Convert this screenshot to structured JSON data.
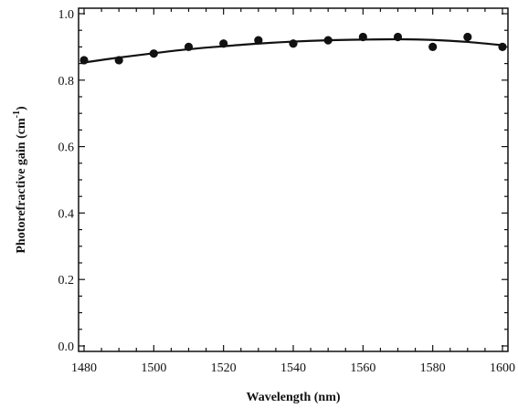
{
  "chart_data": {
    "type": "scatter",
    "title": "",
    "xlabel": "Wavelength (nm)",
    "ylabel_main": "Photorefractive  gain (cm",
    "ylabel_sup": "-1",
    "ylabel_tail": ")",
    "xlim": [
      1480,
      1600
    ],
    "ylim": [
      0.0,
      1.0
    ],
    "x_ticks": [
      1480,
      1500,
      1520,
      1540,
      1560,
      1580,
      1600
    ],
    "x_tick_labels": [
      "1480",
      "1500",
      "1520",
      "1540",
      "1560",
      "1580",
      "1600"
    ],
    "y_ticks": [
      0.0,
      0.2,
      0.4,
      0.6,
      0.8,
      1.0
    ],
    "y_tick_labels": [
      "0.0",
      "0.2",
      "0.4",
      "0.6",
      "0.8",
      "1.0"
    ],
    "grid": false,
    "legend": "none",
    "series": [
      {
        "kind": "points",
        "x": [
          1480,
          1490,
          1500,
          1510,
          1520,
          1530,
          1540,
          1550,
          1560,
          1570,
          1580,
          1590,
          1600
        ],
        "y": [
          0.86,
          0.86,
          0.88,
          0.9,
          0.91,
          0.92,
          0.91,
          0.92,
          0.93,
          0.93,
          0.9,
          0.93,
          0.9
        ]
      },
      {
        "kind": "fit-line",
        "x": [
          1480,
          1490,
          1500,
          1510,
          1520,
          1530,
          1540,
          1550,
          1560,
          1570,
          1580,
          1590,
          1600
        ],
        "y": [
          0.853,
          0.868,
          0.881,
          0.893,
          0.902,
          0.91,
          0.916,
          0.92,
          0.922,
          0.923,
          0.921,
          0.915,
          0.905
        ]
      }
    ],
    "colors": {
      "ink": "#111111",
      "background": "#ffffff"
    }
  }
}
